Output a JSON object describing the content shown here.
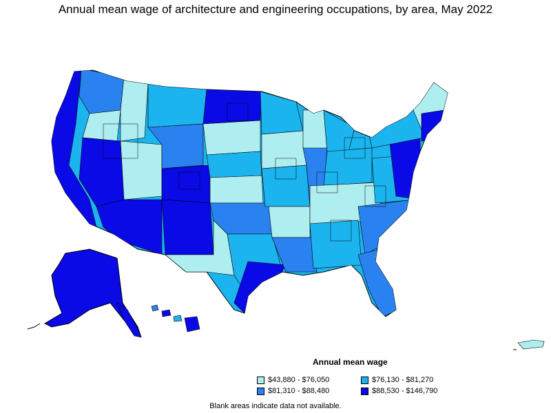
{
  "title": "Annual mean wage of architecture and engineering occupations, by area, May 2022",
  "legend": {
    "title": "Annual mean wage",
    "items": [
      {
        "label": "$43,880 - $76,050",
        "color": "#aeeef0"
      },
      {
        "label": "$76,130 - $81,270",
        "color": "#1cb4ef"
      },
      {
        "label": "$81,310 - $88,480",
        "color": "#2a82f0"
      },
      {
        "label": "$88,530 - $146,790",
        "color": "#0a0ae6"
      }
    ]
  },
  "note": "Blank areas indicate data not available."
}
